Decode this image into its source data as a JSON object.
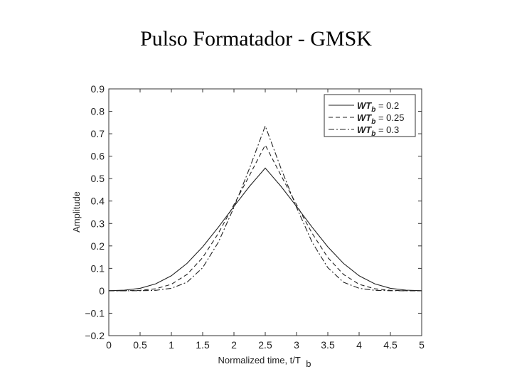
{
  "page": {
    "title": "Pulso Formatador - GMSK"
  },
  "chart_data": {
    "type": "line",
    "xlabel": "Normalized time, t/T",
    "xlabel_sub": "b",
    "ylabel": "Amplitude",
    "xlim": [
      0,
      5
    ],
    "ylim": [
      -0.2,
      0.9
    ],
    "xticks": [
      0,
      0.5,
      1,
      1.5,
      2,
      2.5,
      3,
      3.5,
      4,
      4.5,
      5
    ],
    "xtick_labels": [
      "0",
      "0.5",
      "1",
      "1.5",
      "2",
      "2.5",
      "3",
      "3.5",
      "4",
      "4.5",
      "5"
    ],
    "yticks": [
      -0.2,
      -0.1,
      0,
      0.1,
      0.2,
      0.3,
      0.4,
      0.5,
      0.6,
      0.7,
      0.8,
      0.9
    ],
    "ytick_labels": [
      "−0.2",
      "−0.1",
      "0",
      "0.1",
      "0.2",
      "0.3",
      "0.4",
      "0.5",
      "0.6",
      "0.7",
      "0.8",
      "0.9"
    ],
    "grid": false,
    "legend_position": "top-right",
    "x": [
      0,
      0.25,
      0.5,
      0.75,
      1,
      1.25,
      1.5,
      1.75,
      2,
      2.25,
      2.5,
      2.75,
      3,
      3.25,
      3.5,
      3.75,
      4,
      4.25,
      4.5,
      4.75,
      5
    ],
    "series": [
      {
        "name_prefix": "WT",
        "name_sub": "b",
        "name_suffix": " = 0.2",
        "style": "solid",
        "values": [
          0.0004,
          0.003,
          0.011,
          0.031,
          0.067,
          0.122,
          0.196,
          0.283,
          0.376,
          0.466,
          0.547,
          0.466,
          0.376,
          0.283,
          0.196,
          0.122,
          0.067,
          0.031,
          0.011,
          0.003,
          0.0004
        ]
      },
      {
        "name_prefix": "WT",
        "name_sub": "b",
        "name_suffix": " = 0.25",
        "style": "dashed",
        "values": [
          0.0,
          0.0003,
          0.002,
          0.009,
          0.029,
          0.073,
          0.148,
          0.256,
          0.384,
          0.515,
          0.65,
          0.515,
          0.384,
          0.256,
          0.148,
          0.073,
          0.029,
          0.009,
          0.002,
          0.0003,
          0.0
        ]
      },
      {
        "name_prefix": "WT",
        "name_sub": "b",
        "name_suffix": " = 0.3",
        "style": "dashdot",
        "values": [
          0.0,
          0.0,
          0.0003,
          0.002,
          0.011,
          0.038,
          0.103,
          0.216,
          0.372,
          0.547,
          0.735,
          0.547,
          0.372,
          0.216,
          0.103,
          0.038,
          0.011,
          0.002,
          0.0003,
          0.0,
          0.0
        ]
      }
    ]
  }
}
